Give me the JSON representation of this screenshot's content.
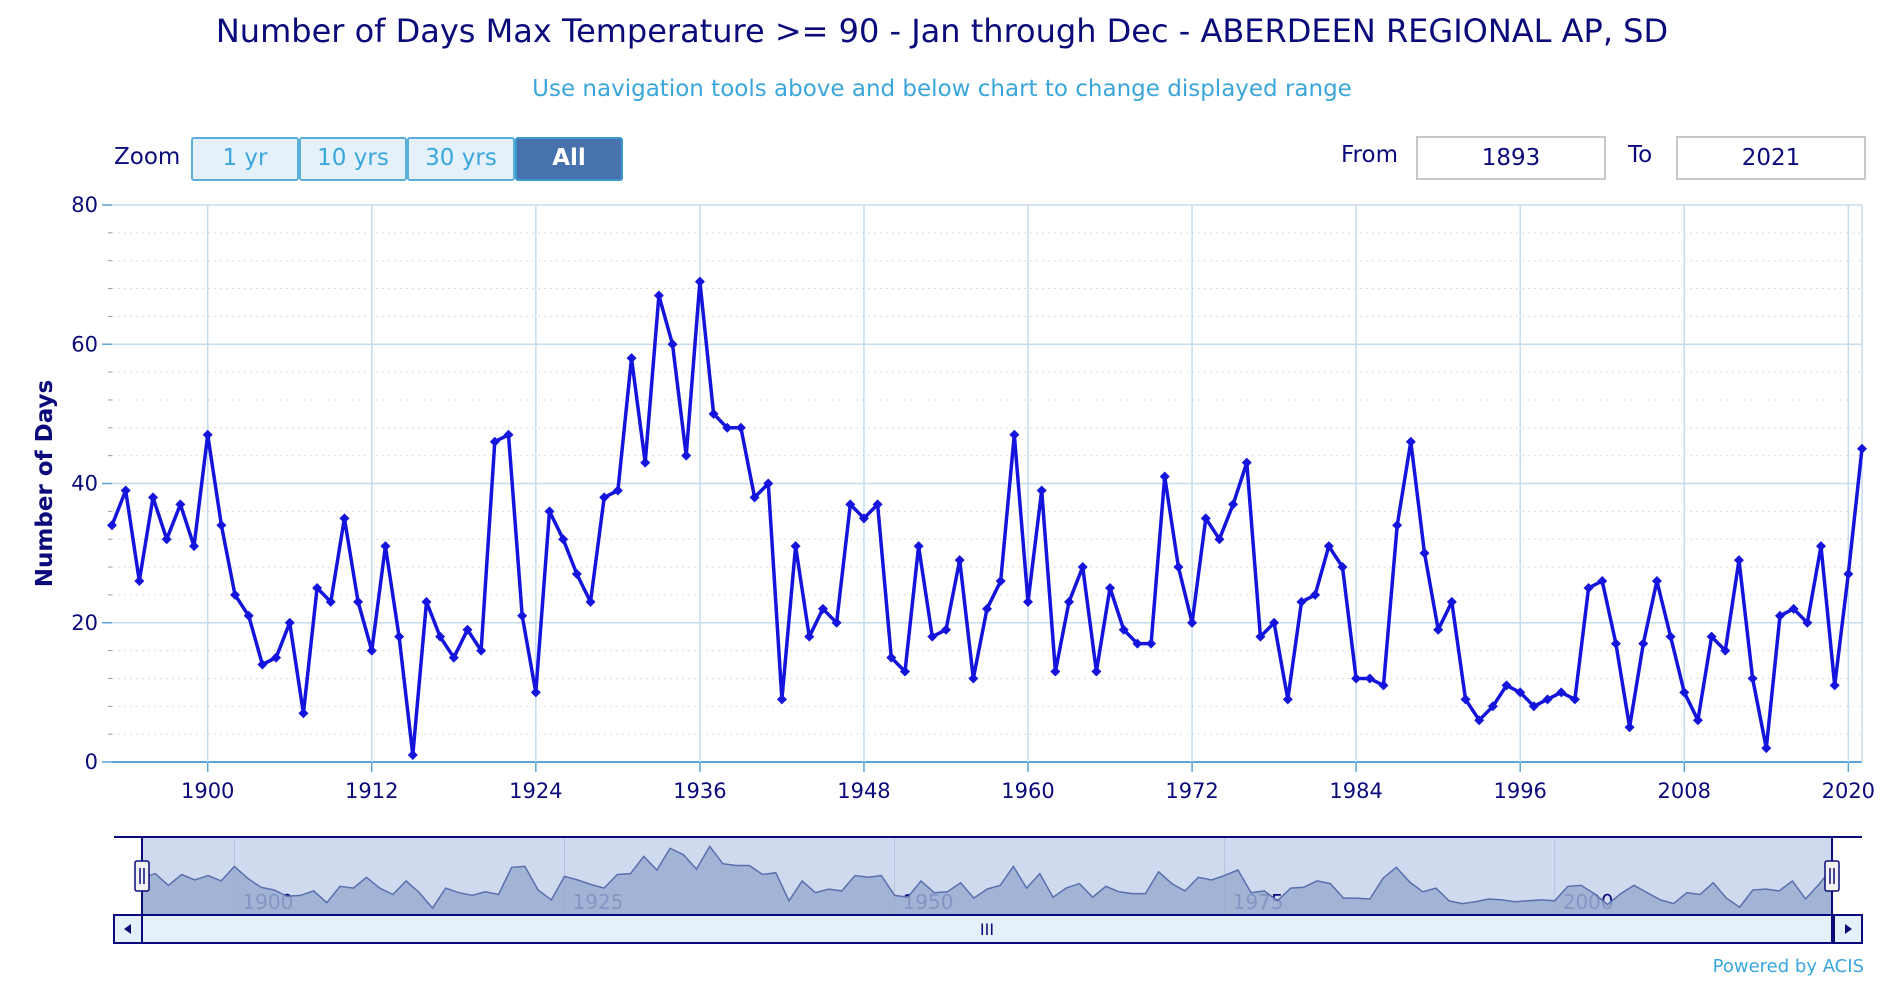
{
  "header": {
    "title": "Number of Days Max Temperature >= 90 - Jan through Dec - ABERDEEN REGIONAL AP, SD",
    "subtitle": "Use navigation tools above and below chart to change displayed range"
  },
  "zoom": {
    "label": "Zoom",
    "buttons": [
      "1 yr",
      "10 yrs",
      "30 yrs",
      "All"
    ],
    "selected": "All"
  },
  "range": {
    "from_label": "From",
    "from_value": "1893",
    "to_label": "To",
    "to_value": "2021"
  },
  "colors": {
    "series": "#1414dc",
    "grid": "#c5dced",
    "axis_text": "#0a0a7a",
    "navigator_fill": "#9aadd0",
    "navigator_line": "#5a6fae"
  },
  "chart_data": {
    "type": "line",
    "title": "",
    "ylabel": "Number of Days",
    "xlabel": "",
    "xlim": [
      1893,
      2021
    ],
    "ylim": [
      0,
      80
    ],
    "y_ticks": [
      0,
      20,
      40,
      60,
      80
    ],
    "x_ticks": [
      1900,
      1912,
      1924,
      1936,
      1948,
      1960,
      1972,
      1984,
      1996,
      2008,
      2020
    ],
    "grid": true,
    "markers": "diamond",
    "legend": "none",
    "x": [
      1893,
      1894,
      1895,
      1896,
      1897,
      1898,
      1899,
      1900,
      1901,
      1902,
      1903,
      1904,
      1905,
      1906,
      1907,
      1908,
      1909,
      1910,
      1911,
      1912,
      1913,
      1914,
      1915,
      1916,
      1917,
      1918,
      1919,
      1920,
      1921,
      1922,
      1923,
      1924,
      1925,
      1926,
      1927,
      1928,
      1929,
      1930,
      1931,
      1932,
      1933,
      1934,
      1935,
      1936,
      1937,
      1938,
      1939,
      1940,
      1941,
      1942,
      1943,
      1944,
      1945,
      1946,
      1947,
      1948,
      1949,
      1950,
      1951,
      1952,
      1953,
      1954,
      1955,
      1956,
      1957,
      1958,
      1959,
      1960,
      1961,
      1962,
      1963,
      1964,
      1965,
      1966,
      1967,
      1968,
      1969,
      1970,
      1971,
      1972,
      1973,
      1974,
      1975,
      1976,
      1977,
      1978,
      1979,
      1980,
      1981,
      1982,
      1983,
      1984,
      1985,
      1986,
      1987,
      1988,
      1989,
      1990,
      1991,
      1992,
      1993,
      1994,
      1995,
      1996,
      1997,
      1998,
      1999,
      2000,
      2001,
      2002,
      2003,
      2004,
      2005,
      2006,
      2007,
      2008,
      2009,
      2010,
      2011,
      2012,
      2013,
      2014,
      2015,
      2016,
      2017,
      2018,
      2019,
      2020,
      2021
    ],
    "series": [
      {
        "values": [
          34,
          39,
          26,
          38,
          32,
          37,
          31,
          47,
          34,
          24,
          21,
          14,
          15,
          20,
          7,
          25,
          23,
          35,
          23,
          16,
          31,
          18,
          1,
          23,
          18,
          15,
          19,
          16,
          46,
          47,
          21,
          10,
          36,
          32,
          27,
          23,
          38,
          39,
          58,
          43,
          67,
          60,
          44,
          69,
          50,
          48,
          48,
          38,
          40,
          9,
          31,
          18,
          22,
          20,
          37,
          35,
          37,
          15,
          13,
          31,
          18,
          19,
          29,
          12,
          22,
          26,
          47,
          23,
          39,
          13,
          23,
          28,
          13,
          25,
          19,
          17,
          17,
          41,
          28,
          20,
          35,
          32,
          37,
          43,
          18,
          20,
          9,
          23,
          24,
          31,
          28,
          12,
          12,
          11,
          34,
          46,
          30,
          19,
          23,
          9,
          6,
          8,
          11,
          10,
          8,
          9,
          10,
          9,
          25,
          26,
          17,
          5,
          17,
          26,
          18,
          10,
          6,
          18,
          16,
          29,
          12,
          2,
          21,
          22,
          20,
          31,
          11,
          27,
          45
        ]
      }
    ],
    "navigator": {
      "x_labels": [
        "1900",
        "1925",
        "1950",
        "1975",
        "2000"
      ],
      "scrollbar_grip": "III"
    }
  },
  "footer": {
    "credit": "Powered by ACIS"
  }
}
